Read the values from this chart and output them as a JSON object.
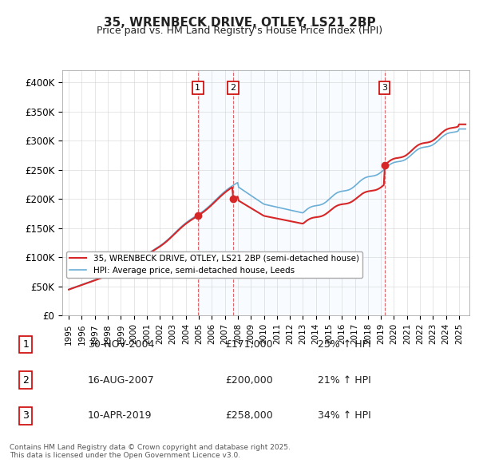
{
  "title": "35, WRENBECK DRIVE, OTLEY, LS21 2BP",
  "subtitle": "Price paid vs. HM Land Registry's House Price Index (HPI)",
  "ylabel": "",
  "ylim": [
    0,
    420000
  ],
  "yticks": [
    0,
    50000,
    100000,
    150000,
    200000,
    250000,
    300000,
    350000,
    400000
  ],
  "ytick_labels": [
    "£0",
    "£50K",
    "£100K",
    "£150K",
    "£200K",
    "£250K",
    "£300K",
    "£350K",
    "£400K"
  ],
  "sale_dates": [
    2004.917,
    2007.622,
    2019.274
  ],
  "sale_prices": [
    171000,
    200000,
    258000
  ],
  "sale_labels": [
    "1",
    "2",
    "3"
  ],
  "hpi_color": "#6baed6",
  "price_color": "#d62728",
  "dot_color": "#d62728",
  "vline_color": "#d62728",
  "shade_color": "#ddeeff",
  "legend_line1": "35, WRENBECK DRIVE, OTLEY, LS21 2BP (semi-detached house)",
  "legend_line2": "HPI: Average price, semi-detached house, Leeds",
  "table_rows": [
    [
      "1",
      "30-NOV-2004",
      "£171,000",
      "23% ↑ HPI"
    ],
    [
      "2",
      "16-AUG-2007",
      "£200,000",
      "21% ↑ HPI"
    ],
    [
      "3",
      "10-APR-2019",
      "£258,000",
      "34% ↑ HPI"
    ]
  ],
  "footer": "Contains HM Land Registry data © Crown copyright and database right 2025.\nThis data is licensed under the Open Government Licence v3.0.",
  "background_color": "#ffffff",
  "plot_bg_color": "#ffffff",
  "grid_color": "#cccccc"
}
